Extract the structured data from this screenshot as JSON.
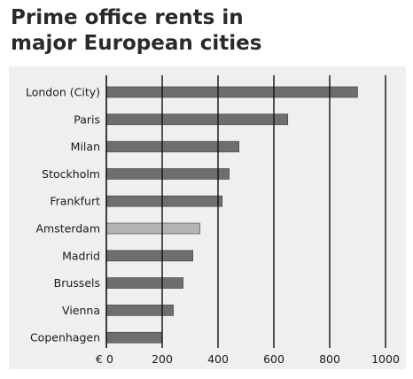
{
  "chart_data": {
    "type": "bar",
    "orientation": "horizontal",
    "title_lines": [
      "Prime office rents in",
      "major European cities"
    ],
    "categories": [
      "London (City)",
      "Paris",
      "Milan",
      "Stockholm",
      "Frankfurt",
      "Amsterdam",
      "Madrid",
      "Brussels",
      "Vienna",
      "Copenhagen"
    ],
    "values": [
      900,
      650,
      475,
      440,
      415,
      335,
      310,
      275,
      240,
      200
    ],
    "xlim": [
      0,
      1000
    ],
    "x_ticks": [
      0,
      200,
      400,
      600,
      800,
      1000
    ],
    "x_tick_labels": [
      "€ 0",
      "200",
      "400",
      "600",
      "800",
      "1000"
    ],
    "grid": "vertical",
    "colors": {
      "bar": "#6e6e6e",
      "bar_highlight": "#b3b3b3",
      "highlight_category": "Amsterdam",
      "panel_background": "#efefef",
      "grid": "#111111"
    }
  }
}
